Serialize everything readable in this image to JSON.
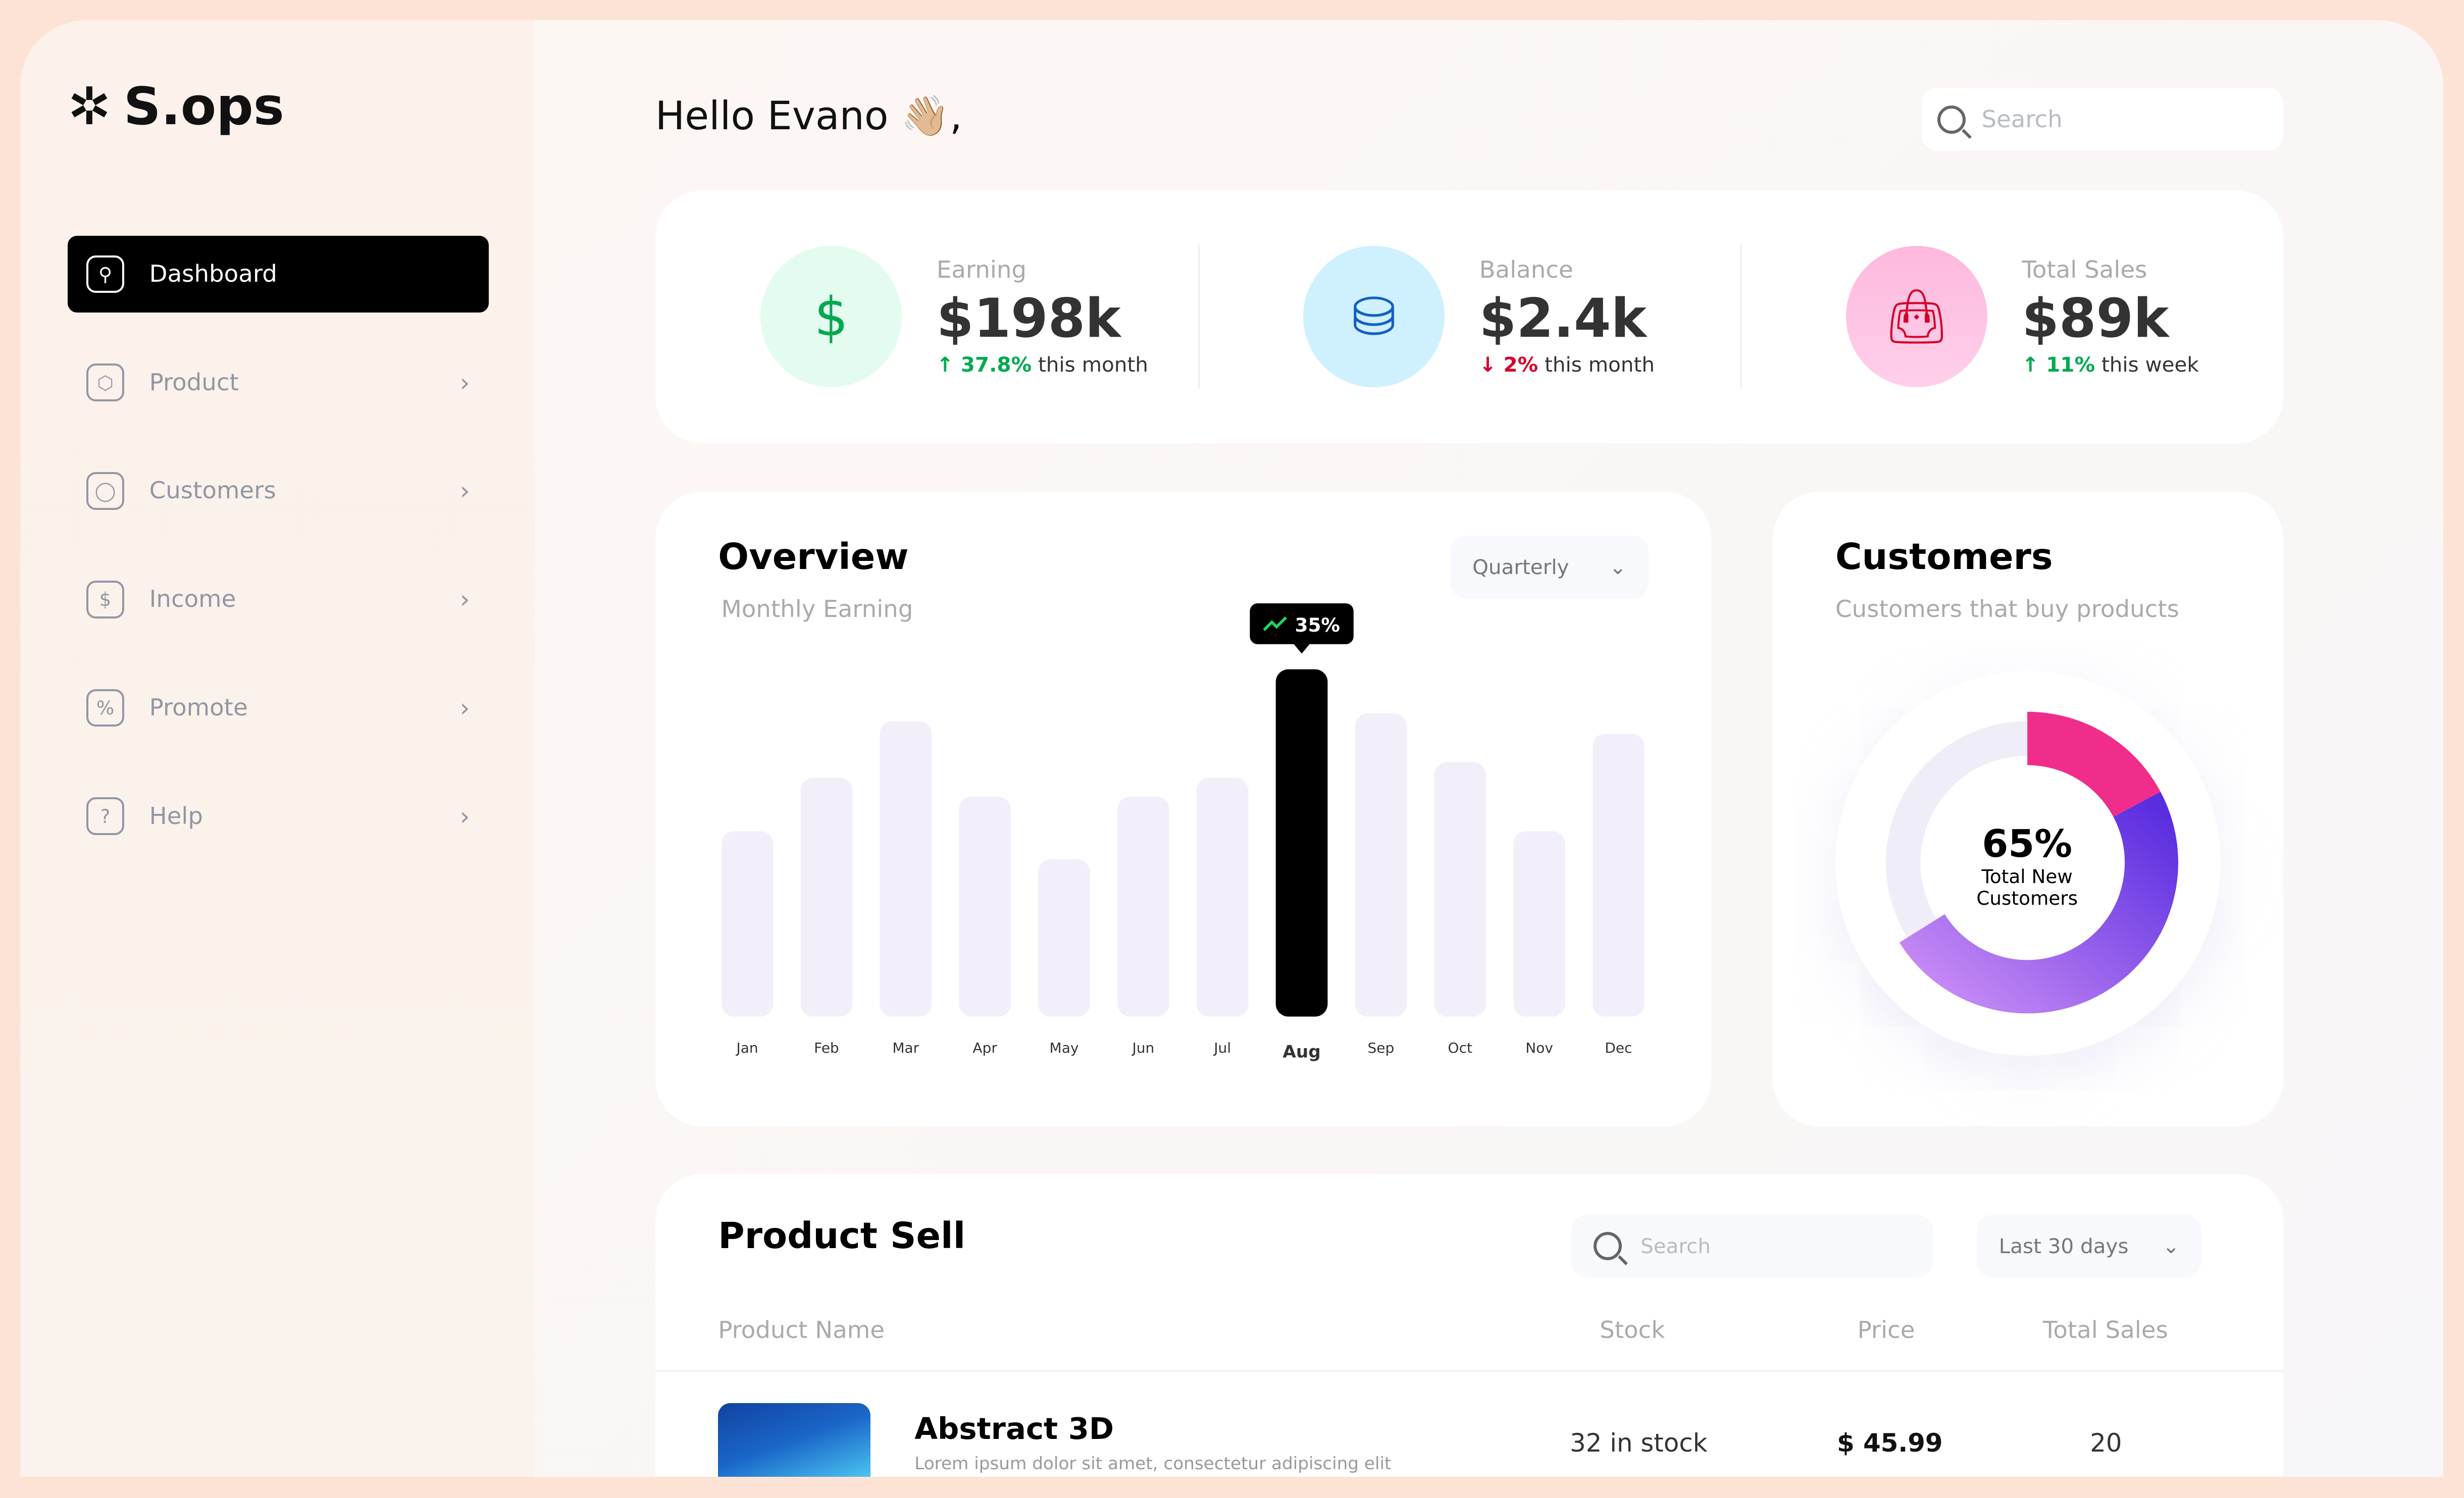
{
  "app": {
    "name": "S.ops"
  },
  "sidebar": {
    "items": [
      {
        "label": "Dashboard",
        "icon": "key-icon",
        "active": true
      },
      {
        "label": "Product",
        "icon": "cube-icon"
      },
      {
        "label": "Customers",
        "icon": "user-icon"
      },
      {
        "label": "Income",
        "icon": "coins-icon"
      },
      {
        "label": "Promote",
        "icon": "badge-percent-icon"
      },
      {
        "label": "Help",
        "icon": "help-icon"
      }
    ]
  },
  "header": {
    "greeting": "Hello Evano 👋🏼,",
    "search_placeholder": "Search"
  },
  "stats": [
    {
      "label": "Earning",
      "value": "$198k",
      "change": "37.8%",
      "period": "this month",
      "direction": "up",
      "bg": "#e3fcef",
      "fg": "#00a94f",
      "icon": "dollar-icon"
    },
    {
      "label": "Balance",
      "value": "$2.4k",
      "change": "2%",
      "period": "this month",
      "direction": "down",
      "bg": "#cff0fe",
      "fg": "#1360c4",
      "icon": "wallet-icon"
    },
    {
      "label": "Total Sales",
      "value": "$89k",
      "change": "11%",
      "period": "this week",
      "direction": "up",
      "bg": "#fdb8dd",
      "fg": "#d5002a",
      "icon": "bag-icon"
    }
  ],
  "overview": {
    "title": "Overview",
    "subtitle": "Monthly Earning",
    "period": "Quarterly",
    "tooltip": "35%"
  },
  "chart_data": {
    "type": "bar",
    "categories": [
      "Jan",
      "Feb",
      "Mar",
      "Apr",
      "May",
      "Jun",
      "Jul",
      "Aug",
      "Sep",
      "Oct",
      "Nov",
      "Dec"
    ],
    "values": [
      118,
      152,
      188,
      140,
      100,
      140,
      152,
      221,
      193,
      162,
      118,
      180
    ],
    "highlight": "Aug",
    "highlight_label": "35%",
    "bar_color": "#f2effb",
    "highlight_color": "#000000"
  },
  "customers": {
    "title": "Customers",
    "subtitle": "Customers that buy products",
    "percent": "65%",
    "caption": "Total New Customers",
    "value": 65,
    "colors": {
      "pink": "#f02d8a",
      "purple": "#5a2de0",
      "light": "#c98df5"
    }
  },
  "products": {
    "title": "Product Sell",
    "search_placeholder": "Search",
    "period": "Last 30 days",
    "columns": [
      "Product Name",
      "Stock",
      "Price",
      "Total Sales"
    ],
    "rows": [
      {
        "name": "Abstract 3D",
        "desc": "Lorem ipsum dolor sit amet, consectetur adipiscing elit",
        "stock": "32 in stock",
        "price": "$ 45.99",
        "sales": "20"
      }
    ]
  }
}
